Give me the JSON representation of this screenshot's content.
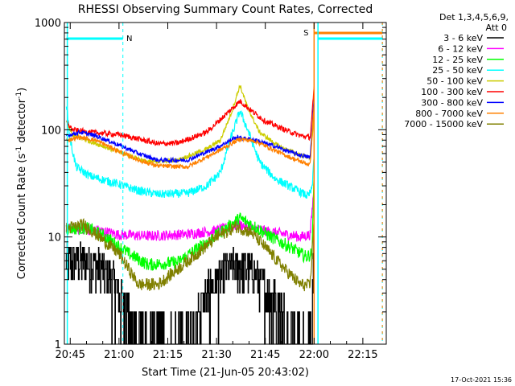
{
  "chart_data": {
    "type": "line",
    "title": "RHESSI Observing Summary Count Rates, Corrected",
    "xlabel": "Start Time (21-Jun-05 20:43:02)",
    "ylabel": "Corrected Count Rate (s",
    "ylabel_sup1": "-1",
    "ylabel_mid": " detector",
    "ylabel_sup2": "-1",
    "ylabel_end": ")",
    "yscale": "log",
    "ylim": [
      1,
      1000
    ],
    "xlim_minutes": [
      20.72,
      22.37
    ],
    "x_ticks": [
      {
        "t": 20.75,
        "label": "20:45"
      },
      {
        "t": 21.0,
        "label": "21:00"
      },
      {
        "t": 21.25,
        "label": "21:15"
      },
      {
        "t": 21.5,
        "label": "21:30"
      },
      {
        "t": 21.75,
        "label": "21:45"
      },
      {
        "t": 22.0,
        "label": "22:00"
      },
      {
        "t": 22.25,
        "label": "22:15"
      }
    ],
    "y_ticks": [
      {
        "v": 1,
        "label": "1"
      },
      {
        "v": 10,
        "label": "10"
      },
      {
        "v": 100,
        "label": "100"
      },
      {
        "v": 1000,
        "label": "1000"
      }
    ],
    "legend_header": [
      "Det 1,3,4,5,6,9,",
      "Att 0"
    ],
    "legend_position": "top-right",
    "footer_date": "17-Oct-2021 15:36",
    "markers": {
      "night_label": "N",
      "saa_label": "S",
      "night_color": "#00ffff",
      "saa_color": "#ff8000",
      "night_bars": [
        [
          20.73,
          21.02
        ],
        [
          22.02,
          22.35
        ]
      ],
      "saa_bar": [
        22.0,
        22.35
      ],
      "night_dashed_lines": [
        21.02,
        22.35
      ],
      "night_solid_lines": [
        20.735,
        22.02
      ],
      "saa_lines": [
        22.0
      ]
    },
    "series": [
      {
        "name": "3 - 6 keV",
        "color": "#000000",
        "noise": "step",
        "points": [
          [
            20.73,
            6
          ],
          [
            20.8,
            6
          ],
          [
            20.9,
            5.5
          ],
          [
            20.97,
            4
          ],
          [
            21.0,
            3
          ],
          [
            21.05,
            2
          ],
          [
            21.1,
            1.5
          ],
          [
            21.2,
            1.2
          ],
          [
            21.35,
            1.4
          ],
          [
            21.45,
            3
          ],
          [
            21.55,
            5
          ],
          [
            21.62,
            5.5
          ],
          [
            21.68,
            5
          ],
          [
            21.75,
            3.5
          ],
          [
            21.85,
            2
          ],
          [
            21.93,
            1.4
          ],
          [
            21.97,
            1.2
          ],
          [
            21.99,
            1.5
          ],
          [
            22.0,
            10
          ]
        ]
      },
      {
        "name": "6 - 12 keV",
        "color": "#ff00ff",
        "noise": 0.05,
        "points": [
          [
            20.73,
            12
          ],
          [
            20.9,
            11.5
          ],
          [
            21.0,
            10.5
          ],
          [
            21.15,
            10.2
          ],
          [
            21.35,
            10.6
          ],
          [
            21.5,
            11.5
          ],
          [
            21.62,
            13
          ],
          [
            21.68,
            12
          ],
          [
            21.8,
            11
          ],
          [
            21.93,
            10
          ],
          [
            21.98,
            10.5
          ],
          [
            22.0,
            30
          ]
        ]
      },
      {
        "name": "12 - 25 keV",
        "color": "#00ff00",
        "noise": 0.06,
        "points": [
          [
            20.73,
            12
          ],
          [
            20.85,
            12
          ],
          [
            20.95,
            9.5
          ],
          [
            21.05,
            7
          ],
          [
            21.15,
            5.5
          ],
          [
            21.3,
            5.8
          ],
          [
            21.45,
            9
          ],
          [
            21.55,
            12
          ],
          [
            21.62,
            15
          ],
          [
            21.68,
            13
          ],
          [
            21.78,
            10
          ],
          [
            21.88,
            8
          ],
          [
            21.96,
            6.5
          ],
          [
            21.99,
            7
          ],
          [
            22.0,
            40
          ]
        ]
      },
      {
        "name": "25 - 50 keV",
        "color": "#00ffff",
        "noise": 0.04,
        "points": [
          [
            20.73,
            180
          ],
          [
            20.75,
            80
          ],
          [
            20.78,
            45
          ],
          [
            20.85,
            37
          ],
          [
            21.0,
            31
          ],
          [
            21.1,
            27
          ],
          [
            21.2,
            25
          ],
          [
            21.35,
            25.5
          ],
          [
            21.45,
            30
          ],
          [
            21.52,
            40
          ],
          [
            21.57,
            80
          ],
          [
            21.62,
            150
          ],
          [
            21.66,
            100
          ],
          [
            21.72,
            50
          ],
          [
            21.8,
            35
          ],
          [
            21.9,
            28
          ],
          [
            21.97,
            24
          ],
          [
            21.99,
            28
          ],
          [
            22.0,
            60
          ]
        ]
      },
      {
        "name": "50 - 100 keV",
        "color": "#cccc00",
        "noise": 0.02,
        "points": [
          [
            20.73,
            120
          ],
          [
            20.76,
            90
          ],
          [
            20.85,
            78
          ],
          [
            21.0,
            62
          ],
          [
            21.15,
            50
          ],
          [
            21.3,
            52
          ],
          [
            21.45,
            66
          ],
          [
            21.52,
            80
          ],
          [
            21.58,
            150
          ],
          [
            21.62,
            260
          ],
          [
            21.66,
            160
          ],
          [
            21.72,
            95
          ],
          [
            21.82,
            70
          ],
          [
            21.93,
            58
          ],
          [
            21.98,
            55
          ],
          [
            22.0,
            130
          ]
        ]
      },
      {
        "name": "100 - 300 keV",
        "color": "#ff0000",
        "noise": 0.025,
        "points": [
          [
            20.73,
            120
          ],
          [
            20.76,
            100
          ],
          [
            20.85,
            95
          ],
          [
            21.0,
            90
          ],
          [
            21.1,
            82
          ],
          [
            21.2,
            74
          ],
          [
            21.3,
            75
          ],
          [
            21.45,
            95
          ],
          [
            21.55,
            140
          ],
          [
            21.62,
            185
          ],
          [
            21.68,
            150
          ],
          [
            21.75,
            120
          ],
          [
            21.85,
            100
          ],
          [
            21.93,
            88
          ],
          [
            21.98,
            85
          ],
          [
            22.0,
            240
          ]
        ]
      },
      {
        "name": "300 - 800 keV",
        "color": "#0000ff",
        "noise": 0.02,
        "points": [
          [
            20.73,
            88
          ],
          [
            20.8,
            95
          ],
          [
            20.88,
            88
          ],
          [
            21.0,
            72
          ],
          [
            21.1,
            60
          ],
          [
            21.2,
            52
          ],
          [
            21.35,
            52
          ],
          [
            21.5,
            68
          ],
          [
            21.6,
            85
          ],
          [
            21.7,
            80
          ],
          [
            21.8,
            70
          ],
          [
            21.9,
            60
          ],
          [
            21.98,
            55
          ],
          [
            22.0,
            200
          ]
        ]
      },
      {
        "name": "800 - 7000 keV",
        "color": "#ff8000",
        "noise": 0.02,
        "points": [
          [
            20.73,
            80
          ],
          [
            20.8,
            85
          ],
          [
            20.88,
            80
          ],
          [
            21.0,
            63
          ],
          [
            21.1,
            52
          ],
          [
            21.2,
            46
          ],
          [
            21.35,
            45
          ],
          [
            21.5,
            62
          ],
          [
            21.62,
            82
          ],
          [
            21.7,
            78
          ],
          [
            21.8,
            64
          ],
          [
            21.9,
            53
          ],
          [
            21.98,
            47
          ],
          [
            22.0,
            180
          ]
        ]
      },
      {
        "name": "7000 - 15000 keV",
        "color": "#808000",
        "noise": 0.06,
        "points": [
          [
            20.73,
            12
          ],
          [
            20.82,
            13
          ],
          [
            20.9,
            10
          ],
          [
            21.0,
            7
          ],
          [
            21.05,
            5
          ],
          [
            21.1,
            3.6
          ],
          [
            21.2,
            3.6
          ],
          [
            21.3,
            5
          ],
          [
            21.4,
            7
          ],
          [
            21.5,
            10
          ],
          [
            21.6,
            12.5
          ],
          [
            21.68,
            11
          ],
          [
            21.75,
            8
          ],
          [
            21.85,
            5
          ],
          [
            21.93,
            3.6
          ],
          [
            21.98,
            3.5
          ],
          [
            22.0,
            15
          ]
        ]
      }
    ]
  }
}
